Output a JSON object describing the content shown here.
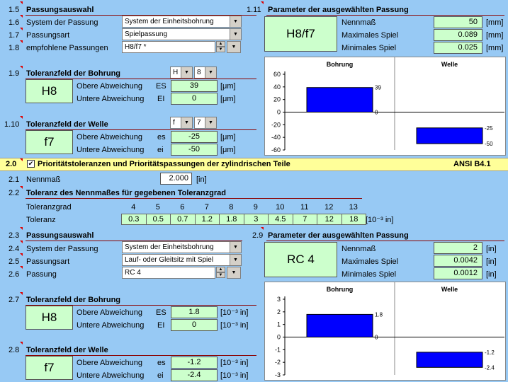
{
  "sec15": {
    "num": "1.5",
    "title": "Passungsauswahl"
  },
  "sec16": {
    "num": "1.6",
    "label": "System der Passung",
    "value": "System der Einheitsbohrung"
  },
  "sec17": {
    "num": "1.7",
    "label": "Passungsart",
    "value": "Spielpassung"
  },
  "sec18": {
    "num": "1.8",
    "label": "empfohlene Passungen",
    "value": "H8/f7 *"
  },
  "sec111": {
    "num": "1.11",
    "title": "Parameter der ausgewählten Passung",
    "fit": "H8/f7",
    "rows": [
      {
        "label": "Nennmaß",
        "value": "50",
        "unit": "[mm]"
      },
      {
        "label": "Maximales Spiel",
        "value": "0.089",
        "unit": "[mm]"
      },
      {
        "label": "Minimales Spiel",
        "value": "0.025",
        "unit": "[mm]"
      }
    ]
  },
  "sec19": {
    "num": "1.9",
    "title": "Toleranzfeld der Bohrung",
    "code": "H8",
    "sel1": "H",
    "sel2": "8",
    "rows": [
      {
        "label": "Obere Abweichung",
        "sym": "ES",
        "value": "39",
        "unit": "[μm]"
      },
      {
        "label": "Untere Abweichung",
        "sym": "EI",
        "value": "0",
        "unit": "[μm]"
      }
    ]
  },
  "sec110": {
    "num": "1.10",
    "title": "Toleranzfeld der Welle",
    "code": "f7",
    "sel1": "f",
    "sel2": "7",
    "rows": [
      {
        "label": "Obere Abweichung",
        "sym": "es",
        "value": "-25",
        "unit": "[μm]"
      },
      {
        "label": "Untere Abweichung",
        "sym": "ei",
        "value": "-50",
        "unit": "[μm]"
      }
    ]
  },
  "sec20": {
    "num": "2.0",
    "title": "Prioritätstoleranzen und Prioritätspassungen der zylindrischen Teile",
    "std": "ANSI B4.1"
  },
  "sec21": {
    "num": "2.1",
    "label": "Nennmaß",
    "value": "2.000",
    "unit": "[in]"
  },
  "sec22": {
    "num": "2.2",
    "title": "Toleranz des Nennmaßes für gegebenen Toleranzgrad",
    "grade_label": "Toleranzgrad",
    "tol_label": "Toleranz",
    "grades": [
      "4",
      "5",
      "6",
      "7",
      "8",
      "9",
      "10",
      "11",
      "12",
      "13"
    ],
    "tols": [
      "0.3",
      "0.5",
      "0.7",
      "1.2",
      "1.8",
      "3",
      "4.5",
      "7",
      "12",
      "18"
    ],
    "unit": "[10⁻³ in]"
  },
  "sec23": {
    "num": "2.3",
    "title": "Passungsauswahl"
  },
  "sec24": {
    "num": "2.4",
    "label": "System der Passung",
    "value": "System der Einheitsbohrung"
  },
  "sec25": {
    "num": "2.5",
    "label": "Passungsart",
    "value": "Lauf- oder Gleitsitz mit Spiel"
  },
  "sec26": {
    "num": "2.6",
    "label": "Passung",
    "value": "RC 4"
  },
  "sec29": {
    "num": "2.9",
    "title": "Parameter der ausgewählten Passung",
    "fit": "RC 4",
    "rows": [
      {
        "label": "Nennmaß",
        "value": "2",
        "unit": "[in]"
      },
      {
        "label": "Maximales Spiel",
        "value": "0.0042",
        "unit": "[in]"
      },
      {
        "label": "Minimales Spiel",
        "value": "0.0012",
        "unit": "[in]"
      }
    ]
  },
  "sec27": {
    "num": "2.7",
    "title": "Toleranzfeld der Bohrung",
    "code": "H8",
    "rows": [
      {
        "label": "Obere Abweichung",
        "sym": "ES",
        "value": "1.8",
        "unit": "[10⁻³ in]"
      },
      {
        "label": "Untere Abweichung",
        "sym": "EI",
        "value": "0",
        "unit": "[10⁻³ in]"
      }
    ]
  },
  "sec28": {
    "num": "2.8",
    "title": "Toleranzfeld der Welle",
    "code": "f7",
    "rows": [
      {
        "label": "Obere Abweichung",
        "sym": "es",
        "value": "-1.2",
        "unit": "[10⁻³ in]"
      },
      {
        "label": "Untere Abweichung",
        "sym": "ei",
        "value": "-2.4",
        "unit": "[10⁻³ in]"
      }
    ]
  },
  "chart_data": [
    {
      "type": "bar",
      "categories": [
        "Bohrung",
        "Welle"
      ],
      "series": [
        {
          "values": [
            [
              0,
              39
            ],
            [
              -50,
              -25
            ]
          ]
        }
      ],
      "bar_labels": [
        [
          "39",
          "0"
        ],
        [
          "-25",
          "-50"
        ]
      ],
      "yticks": [
        "60",
        "40",
        "20",
        "0",
        "-20",
        "-40",
        "-60"
      ],
      "ylim": [
        -60,
        60
      ],
      "bar_color": "#0000ff"
    },
    {
      "type": "bar",
      "categories": [
        "Bohrung",
        "Welle"
      ],
      "series": [
        {
          "values": [
            [
              0,
              1.8
            ],
            [
              -2.4,
              -1.2
            ]
          ]
        }
      ],
      "bar_labels": [
        [
          "1.8",
          "0"
        ],
        [
          "-1.2",
          "-2.4"
        ]
      ],
      "yticks": [
        "3",
        "2",
        "1",
        "0",
        "-1",
        "-2",
        "-3"
      ],
      "ylim": [
        -3,
        3
      ],
      "bar_color": "#0000ff"
    }
  ]
}
